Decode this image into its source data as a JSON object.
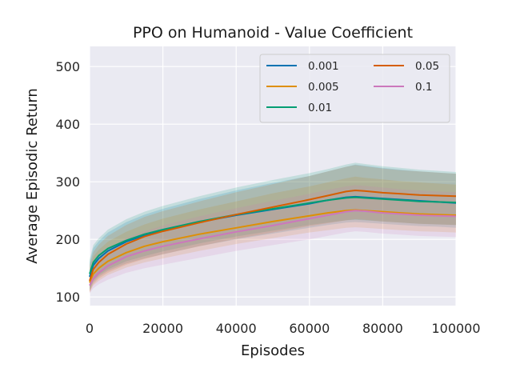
{
  "chart_data": {
    "type": "line",
    "title": "PPO on Humanoid - Value Coefficient",
    "xlabel": "Episodes",
    "ylabel": "Average Episodic Return",
    "xlim": [
      0,
      100000
    ],
    "ylim": [
      85,
      535
    ],
    "xticks": [
      0,
      20000,
      40000,
      60000,
      80000,
      100000
    ],
    "yticks": [
      100,
      200,
      300,
      400,
      500
    ],
    "grid": true,
    "legend_position": "top-right",
    "legend_columns": 2,
    "x": [
      0,
      1000,
      2500,
      5000,
      10000,
      15000,
      20000,
      30000,
      40000,
      50000,
      60000,
      65000,
      70000,
      72500,
      75000,
      80000,
      85000,
      90000,
      95000,
      100000
    ],
    "series": [
      {
        "name": "0.001",
        "color": "#0173b2",
        "values": [
          135,
          155,
          167,
          180,
          196,
          207,
          216,
          230,
          242,
          252,
          262,
          268,
          273,
          274,
          273,
          271,
          269,
          267,
          265,
          263
        ],
        "band_lower": [
          110,
          125,
          135,
          145,
          158,
          167,
          174,
          188,
          200,
          210,
          220,
          225,
          229,
          230,
          229,
          227,
          225,
          223,
          222,
          220
        ],
        "band_upper": [
          160,
          185,
          197,
          212,
          230,
          243,
          253,
          270,
          285,
          298,
          310,
          318,
          326,
          330,
          328,
          324,
          321,
          318,
          316,
          314
        ]
      },
      {
        "name": "0.005",
        "color": "#de8f05",
        "values": [
          125,
          140,
          150,
          162,
          177,
          188,
          196,
          209,
          220,
          231,
          241,
          246,
          250,
          251,
          250,
          248,
          246,
          244,
          243,
          242
        ],
        "band_lower": [
          108,
          120,
          128,
          138,
          151,
          160,
          167,
          180,
          192,
          202,
          212,
          216,
          220,
          221,
          220,
          218,
          216,
          214,
          213,
          212
        ],
        "band_upper": [
          148,
          170,
          182,
          196,
          213,
          226,
          236,
          252,
          266,
          280,
          292,
          299,
          306,
          309,
          307,
          304,
          301,
          299,
          297,
          295
        ]
      },
      {
        "name": "0.01",
        "color": "#029e73",
        "values": [
          140,
          160,
          172,
          184,
          198,
          209,
          217,
          231,
          243,
          253,
          263,
          268,
          272,
          273,
          272,
          270,
          268,
          266,
          265,
          264
        ],
        "band_lower": [
          112,
          128,
          138,
          148,
          162,
          171,
          179,
          193,
          205,
          215,
          225,
          229,
          233,
          234,
          233,
          231,
          229,
          227,
          226,
          225
        ],
        "band_upper": [
          165,
          190,
          202,
          217,
          235,
          248,
          258,
          275,
          290,
          303,
          315,
          322,
          330,
          333,
          331,
          327,
          324,
          321,
          319,
          317
        ]
      },
      {
        "name": "0.05",
        "color": "#d55e00",
        "values": [
          128,
          148,
          160,
          174,
          192,
          205,
          214,
          229,
          243,
          256,
          269,
          276,
          283,
          285,
          284,
          281,
          279,
          277,
          276,
          275
        ],
        "band_lower": [
          108,
          122,
          132,
          142,
          156,
          166,
          174,
          188,
          201,
          212,
          223,
          228,
          233,
          235,
          234,
          231,
          229,
          227,
          226,
          225
        ],
        "band_upper": [
          155,
          178,
          191,
          206,
          225,
          239,
          249,
          266,
          282,
          296,
          310,
          318,
          326,
          329,
          327,
          323,
          320,
          318,
          316,
          314
        ]
      },
      {
        "name": "0.1",
        "color": "#cc78bc",
        "values": [
          120,
          132,
          142,
          154,
          170,
          180,
          188,
          201,
          213,
          224,
          236,
          242,
          248,
          250,
          249,
          246,
          244,
          242,
          241,
          240
        ],
        "band_lower": [
          106,
          115,
          122,
          130,
          142,
          150,
          156,
          168,
          180,
          190,
          200,
          206,
          212,
          214,
          213,
          210,
          208,
          206,
          205,
          204
        ],
        "band_upper": [
          140,
          158,
          170,
          184,
          202,
          214,
          224,
          240,
          254,
          267,
          279,
          286,
          292,
          294,
          293,
          290,
          287,
          285,
          283,
          282
        ]
      }
    ]
  }
}
